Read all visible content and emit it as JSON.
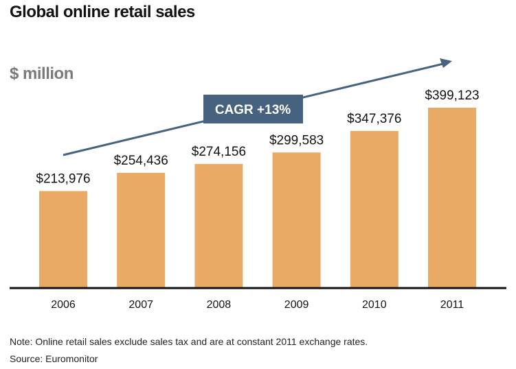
{
  "chart_data": {
    "type": "bar",
    "title": "Global online retail sales",
    "ylabel": "$ million",
    "categories": [
      "2006",
      "2007",
      "2008",
      "2009",
      "2010",
      "2011"
    ],
    "values": [
      213976,
      254436,
      274156,
      299583,
      347376,
      399123
    ],
    "data_labels": [
      "$213,976",
      "$254,436",
      "$274,156",
      "$299,583",
      "$347,376",
      "$399,123"
    ],
    "annotation": "CAGR +13%",
    "grid": false,
    "legend": "none",
    "colors": {
      "bar": "#e9aa66",
      "annotation": "#46627f",
      "axis": "#111111"
    }
  },
  "note": "Note: Online retail sales exclude sales tax and are at constant 2011 exchange rates.",
  "source": "Source: Euromonitor"
}
